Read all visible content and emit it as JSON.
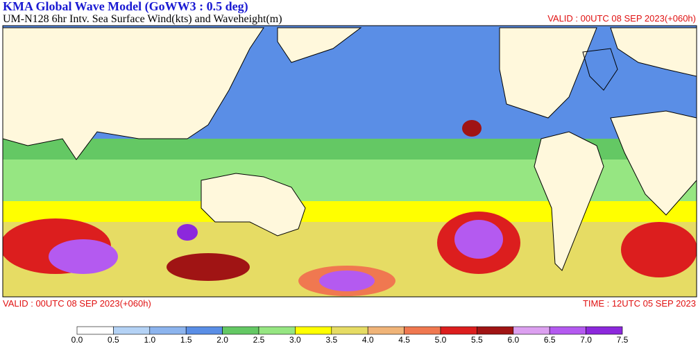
{
  "header": {
    "title": "KMA  Global Wave Model (GoWW3 : 0.5 deg)",
    "subtitle": "UM-N128  6hr Intv. Sea Surface Wind(kts) and Waveheight(m)",
    "valid_top": "VALID : 00UTC 08 SEP 2023(+060h)"
  },
  "footer": {
    "valid": "VALID : 00UTC 08 SEP 2023(+060h)",
    "time": "TIME : 12UTC 05 SEP 2023"
  },
  "legend": {
    "labels": [
      "0.0",
      "0.5",
      "1.0",
      "1.5",
      "2.0",
      "2.5",
      "3.0",
      "3.5",
      "4.0",
      "4.5",
      "5.0",
      "5.5",
      "6.0",
      "6.5",
      "7.0",
      "7.5"
    ],
    "colors": [
      "#ffffff",
      "#b4d2f5",
      "#8cb4ee",
      "#5a8ee6",
      "#64c864",
      "#96e682",
      "#ffff00",
      "#e6dc64",
      "#f0b478",
      "#f07850",
      "#dc1e1e",
      "#a01414",
      "#dca0f0",
      "#b45af0",
      "#8c28dc"
    ]
  }
}
